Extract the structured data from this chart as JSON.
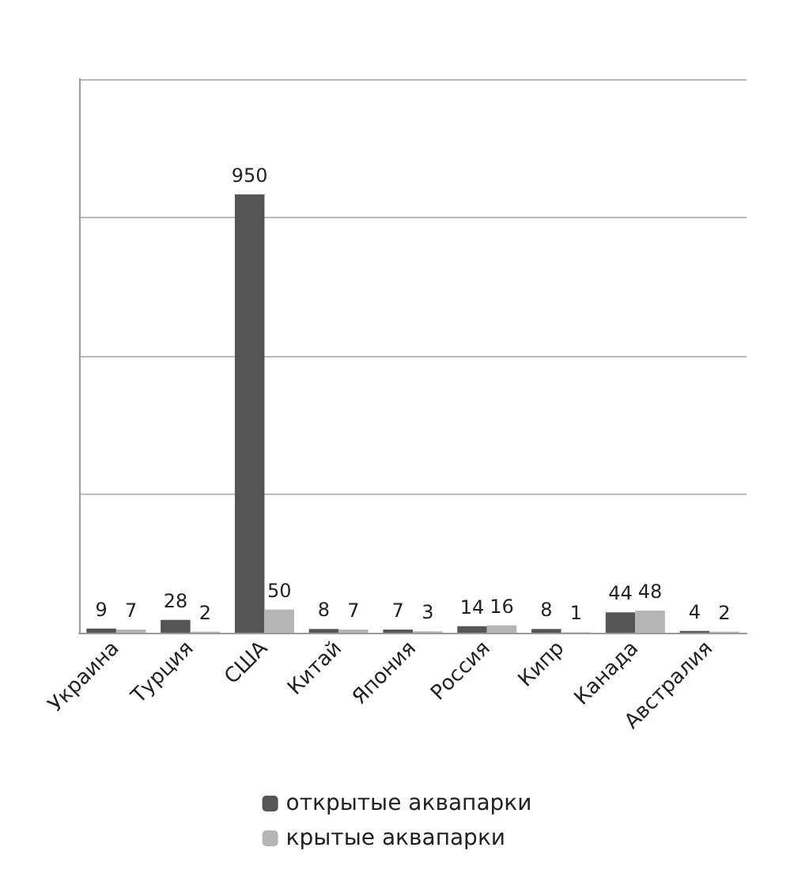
{
  "chart_data": {
    "type": "bar",
    "categories": [
      "Украина",
      "Турция",
      "США",
      "Китай",
      "Япония",
      "Россия",
      "Кипр",
      "Канада",
      "Австралия"
    ],
    "series": [
      {
        "name": "открытые аквапарки",
        "color": "#555555",
        "values": [
          9,
          28,
          950,
          8,
          7,
          14,
          8,
          44,
          4
        ]
      },
      {
        "name": "крытые аквапарки",
        "color": "#b5b5b5",
        "values": [
          7,
          2,
          50,
          7,
          3,
          16,
          1,
          48,
          2
        ]
      }
    ],
    "data_labels": true,
    "grid": "y",
    "legend": "bottom",
    "tick_labels": "x"
  }
}
